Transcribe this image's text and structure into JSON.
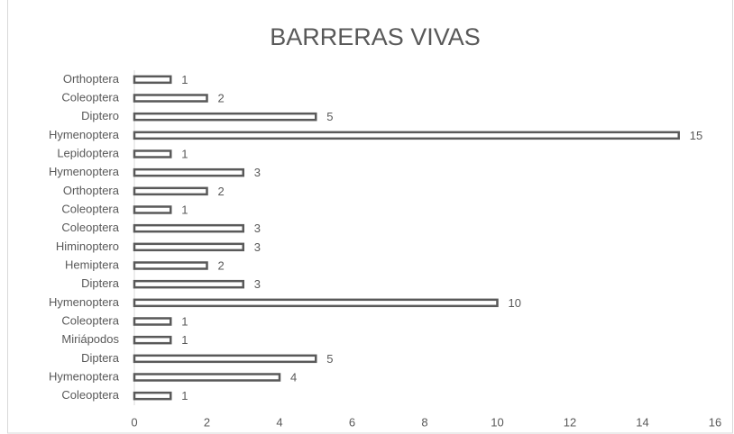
{
  "chart_data": {
    "type": "barh",
    "title": "BARRERAS VIVAS",
    "categories": [
      "Orthoptera",
      "Coleoptera",
      "Diptero",
      "Hymenoptera",
      "Lepidoptera",
      "Hymenoptera",
      "Orthoptera",
      "Coleoptera",
      "Coleoptera",
      "Himinoptero",
      "Hemiptera",
      "Diptera",
      "Hymenoptera",
      "Coleoptera",
      "Miriápodos",
      "Diptera",
      "Hymenoptera",
      "Coleoptera"
    ],
    "values": [
      1,
      2,
      5,
      15,
      1,
      3,
      2,
      1,
      3,
      3,
      2,
      3,
      10,
      1,
      1,
      5,
      4,
      1
    ],
    "color": "#595959",
    "xlim": [
      0,
      16
    ],
    "xticks": [
      0,
      2,
      4,
      6,
      8,
      10,
      12,
      14,
      16
    ]
  }
}
